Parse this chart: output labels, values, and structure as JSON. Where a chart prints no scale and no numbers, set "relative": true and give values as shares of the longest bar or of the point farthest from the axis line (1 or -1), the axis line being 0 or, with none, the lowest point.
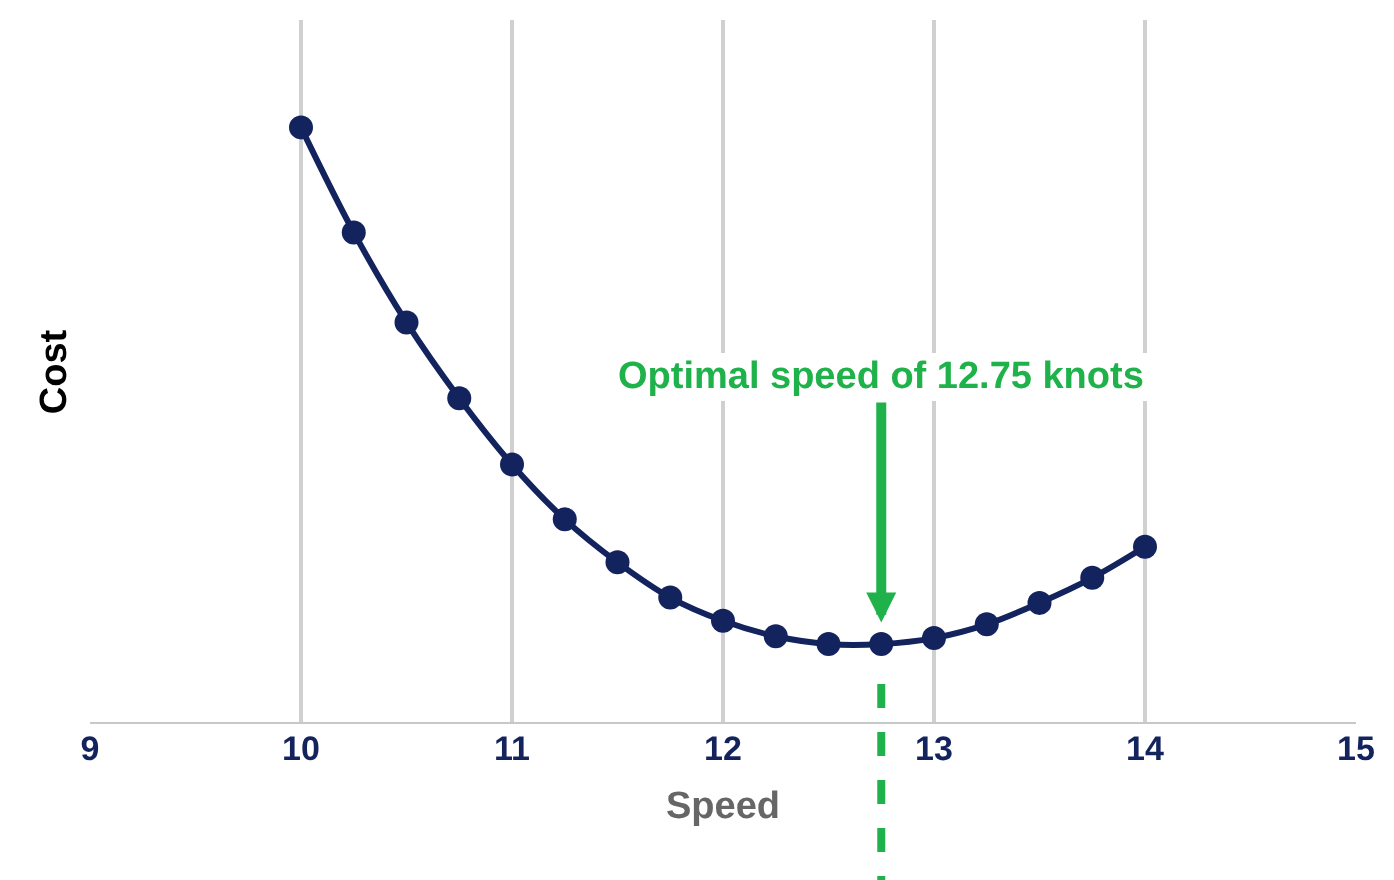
{
  "chart_data": {
    "type": "line",
    "relative": true,
    "xlabel": "Speed",
    "ylabel": "Cost",
    "x": [
      10,
      10.25,
      10.5,
      10.75,
      11,
      11.25,
      11.5,
      11.75,
      12,
      12.25,
      12.5,
      12.75,
      13,
      13.25,
      13.5,
      13.75,
      14
    ],
    "series": [
      {
        "color": "#13235e",
        "values": [
          1,
          0.824,
          0.673,
          0.546,
          0.435,
          0.343,
          0.271,
          0.212,
          0.173,
          0.147,
          0.134,
          0.134,
          0.144,
          0.167,
          0.203,
          0.245,
          0.297
        ]
      }
    ],
    "xlim": [
      9,
      15
    ],
    "xticks": [
      9,
      10,
      11,
      12,
      13,
      14,
      15
    ],
    "grid": "x",
    "legend": false,
    "marker": "circle",
    "line_style": "solid",
    "ref_lines": [
      {
        "axis": "x",
        "value": 12.75,
        "color": "#1fb24a",
        "line_style": "dashed"
      }
    ],
    "annotations": [
      {
        "text": "Optimal speed of 12.75 knots",
        "x": 12.75,
        "y": 0.17
      }
    ]
  }
}
